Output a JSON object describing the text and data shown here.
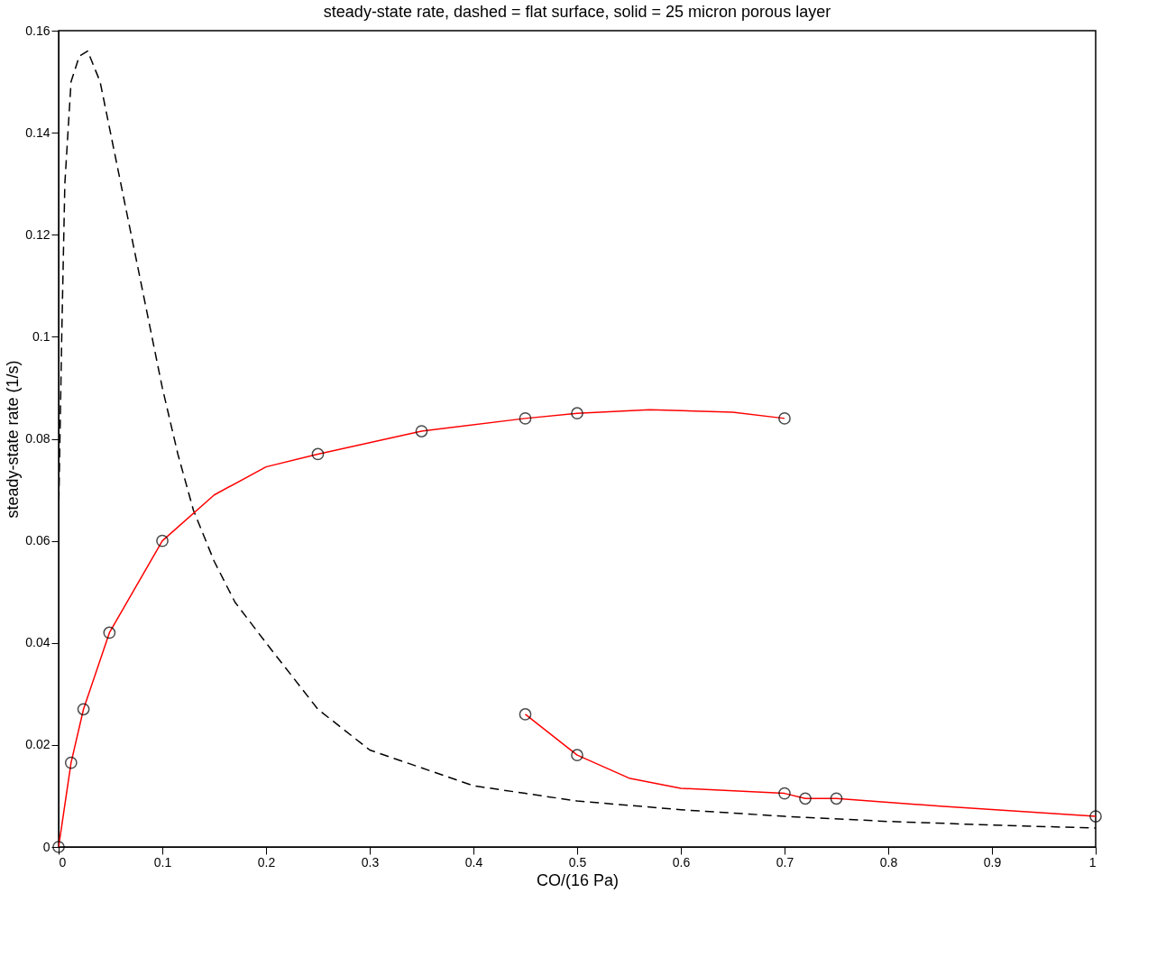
{
  "chart_data": {
    "type": "line",
    "title": "steady-state rate, dashed = flat surface, solid = 25 micron porous layer",
    "xlabel": "CO/(16 Pa)",
    "ylabel": "steady-state rate (1/s)",
    "xlim": [
      0,
      1
    ],
    "ylim": [
      0,
      0.16
    ],
    "xticks": [
      0,
      0.1,
      0.2,
      0.3,
      0.4,
      0.5,
      0.6,
      0.7,
      0.8,
      0.9,
      1
    ],
    "yticks": [
      0,
      0.02,
      0.04,
      0.06,
      0.08,
      0.1,
      0.12,
      0.14,
      0.16
    ],
    "grid": false,
    "series": [
      {
        "color": "#000000",
        "line_style": "dashed",
        "marker": "none",
        "x": [
          0,
          0.003,
          0.006,
          0.012,
          0.02,
          0.028,
          0.04,
          0.05,
          0.07,
          0.09,
          0.1,
          0.115,
          0.13,
          0.15,
          0.17,
          0.2,
          0.25,
          0.3,
          0.35,
          0.4,
          0.45,
          0.5,
          0.6,
          0.7,
          0.8,
          0.9,
          1.0
        ],
        "values": [
          0.065,
          0.1,
          0.13,
          0.15,
          0.155,
          0.156,
          0.15,
          0.14,
          0.12,
          0.1,
          0.09,
          0.077,
          0.066,
          0.056,
          0.048,
          0.04,
          0.027,
          0.019,
          0.0155,
          0.012,
          0.0105,
          0.009,
          0.0073,
          0.006,
          0.005,
          0.0043,
          0.0037
        ]
      },
      {
        "color": "#ff0000",
        "line_style": "solid",
        "marker": "none",
        "x": [
          0,
          0.012,
          0.024,
          0.049,
          0.1,
          0.15,
          0.2,
          0.25,
          0.35,
          0.45,
          0.5,
          0.57,
          0.65,
          0.7
        ],
        "values": [
          0,
          0.0165,
          0.027,
          0.042,
          0.06,
          0.069,
          0.0745,
          0.077,
          0.0815,
          0.084,
          0.085,
          0.0857,
          0.0852,
          0.084
        ]
      },
      {
        "color": "#ff0000",
        "line_style": "solid",
        "marker": "none",
        "x": [
          0.45,
          0.5,
          0.55,
          0.6,
          0.7,
          0.72,
          0.75,
          0.85,
          1.0
        ],
        "values": [
          0.026,
          0.018,
          0.0135,
          0.0115,
          0.0105,
          0.0095,
          0.0095,
          0.008,
          0.006
        ]
      },
      {
        "type": "scatter",
        "color": "#000000",
        "marker": "circle",
        "x": [
          0,
          0.012,
          0.024,
          0.049,
          0.1,
          0.25,
          0.35,
          0.45,
          0.5,
          0.7
        ],
        "values": [
          0,
          0.0165,
          0.027,
          0.042,
          0.06,
          0.077,
          0.0815,
          0.084,
          0.085,
          0.084
        ]
      },
      {
        "type": "scatter",
        "color": "#000000",
        "marker": "circle",
        "x": [
          0.45,
          0.5,
          0.7,
          0.72,
          0.75,
          1.0
        ],
        "values": [
          0.026,
          0.018,
          0.0105,
          0.0095,
          0.0095,
          0.006
        ]
      }
    ]
  }
}
